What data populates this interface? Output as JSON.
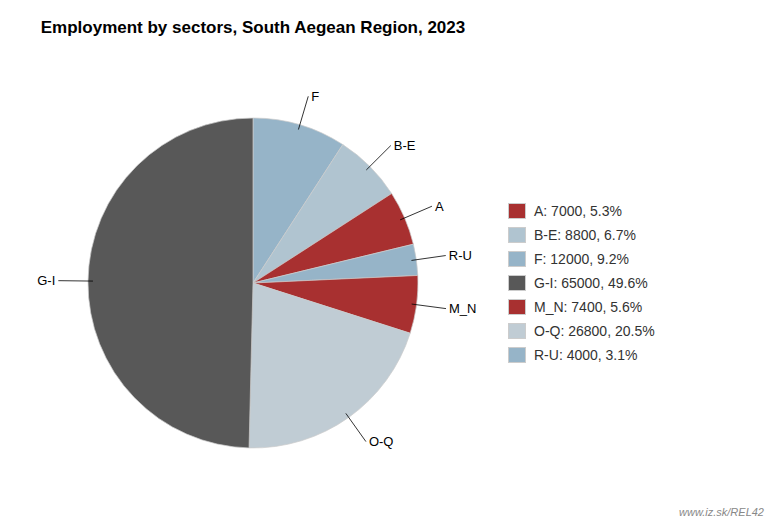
{
  "chart_data": {
    "type": "pie",
    "title": "Employment by sectors, South Aegean Region, 2023",
    "categories": [
      "F",
      "B-E",
      "A",
      "R-U",
      "M_N",
      "O-Q",
      "G-I"
    ],
    "values": [
      12000,
      8800,
      7000,
      4000,
      7400,
      26800,
      65000
    ],
    "colors": [
      "#96b4c8",
      "#b0c4d0",
      "#a83030",
      "#96b4c8",
      "#a83030",
      "#c0ccd4",
      "#585858"
    ],
    "legend": "right",
    "legend_entries": [
      {
        "label": "A: 7000, 5.3%",
        "color": "#a83030"
      },
      {
        "label": "B-E: 8800, 6.7%",
        "color": "#b0c4d0"
      },
      {
        "label": "F: 12000, 9.2%",
        "color": "#96b4c8"
      },
      {
        "label": "G-I: 65000, 49.6%",
        "color": "#585858"
      },
      {
        "label": "M_N: 7400, 5.6%",
        "color": "#a83030"
      },
      {
        "label": "O-Q: 26800, 20.5%",
        "color": "#c0ccd4"
      },
      {
        "label": "R-U: 4000, 3.1%",
        "color": "#96b4c8"
      }
    ],
    "annotations": [
      "www.iz.sk/REL42"
    ]
  }
}
